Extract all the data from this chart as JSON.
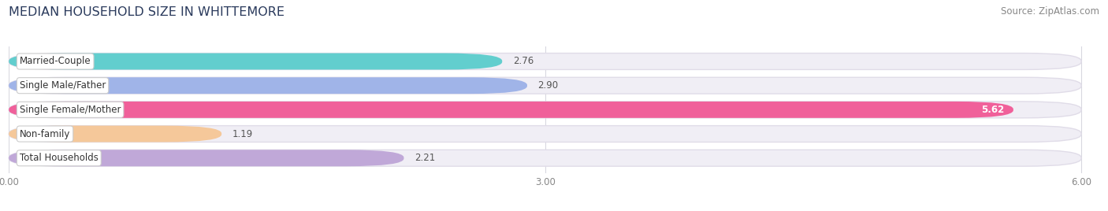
{
  "title": "MEDIAN HOUSEHOLD SIZE IN WHITTEMORE",
  "source": "Source: ZipAtlas.com",
  "categories": [
    "Married-Couple",
    "Single Male/Father",
    "Single Female/Mother",
    "Non-family",
    "Total Households"
  ],
  "values": [
    2.76,
    2.9,
    5.62,
    1.19,
    2.21
  ],
  "bar_colors": [
    "#62cece",
    "#a0b4e8",
    "#f0609a",
    "#f5c89a",
    "#c0a8d8"
  ],
  "bar_bg_color": "#f0eef5",
  "bar_border_color": "#e0dce8",
  "xlim": [
    0,
    6.0
  ],
  "xticks": [
    0.0,
    3.0,
    6.0
  ],
  "xtick_labels": [
    "0.00",
    "3.00",
    "6.00"
  ],
  "title_fontsize": 11.5,
  "source_fontsize": 8.5,
  "label_fontsize": 8.5,
  "value_fontsize": 8.5,
  "background_color": "#ffffff",
  "title_color": "#2a3a5c",
  "source_color": "#888888",
  "grid_color": "#d8d8e0",
  "tick_color": "#888888"
}
